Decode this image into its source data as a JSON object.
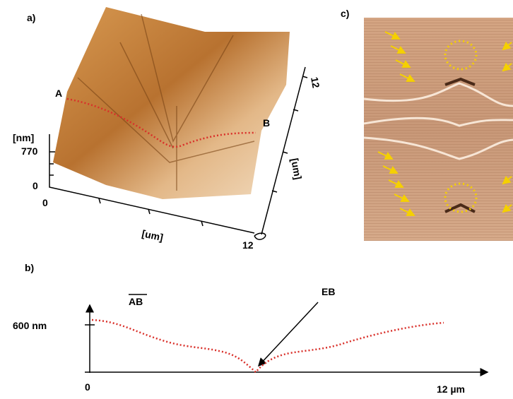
{
  "panel_a": {
    "label": "a)",
    "point_a": "A",
    "point_b": "B",
    "z_unit": "[nm]",
    "z_max": "770",
    "z_min": "0",
    "x_min": "0",
    "x_max": "12",
    "x_unit": "[um]",
    "y_max": "12",
    "y_unit": "[um]"
  },
  "panel_b": {
    "label": "b)",
    "profile": "AB",
    "y_label": "600 nm",
    "annotation": "EB",
    "x_min": "0",
    "x_max": "12 µm"
  },
  "panel_c": {
    "label": "c)"
  }
}
